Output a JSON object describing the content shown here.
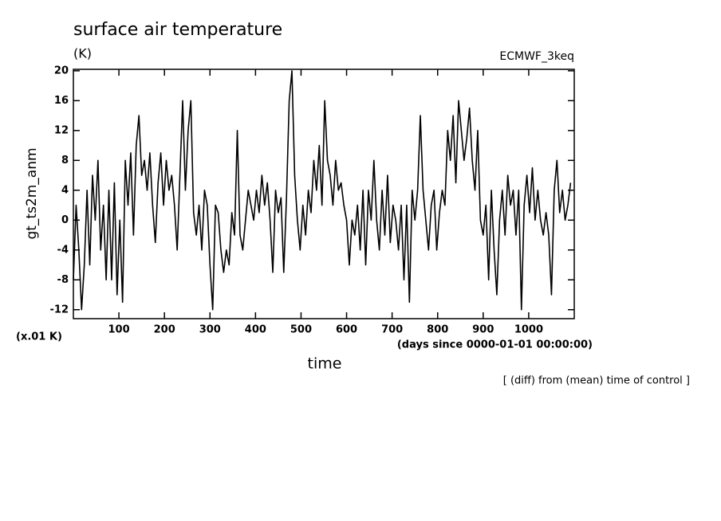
{
  "chart_data": {
    "type": "line",
    "title": "surface air temperature",
    "subtitle": "(K)",
    "annotation": "ECMWF_3keq",
    "ylabel": "gt_ts2m_anm",
    "yunit": "(x.01 K)",
    "xunit": "(days since 0000-01-01 00:00:00)",
    "xlabel": "time",
    "note": "[ (diff) from (mean) time of control ]",
    "color": "#000000",
    "xlim": [
      0,
      1100
    ],
    "ylim": [
      -13.2,
      20.2
    ],
    "xticks": [
      100,
      200,
      300,
      400,
      500,
      600,
      700,
      800,
      900,
      1000
    ],
    "yticks": [
      20,
      16,
      12,
      8,
      4,
      0,
      -4,
      -8,
      -12
    ],
    "x": [
      0,
      6,
      12,
      18,
      24,
      30,
      36,
      42,
      48,
      54,
      60,
      66,
      72,
      78,
      84,
      90,
      96,
      102,
      108,
      114,
      120,
      126,
      132,
      138,
      144,
      150,
      156,
      162,
      168,
      174,
      180,
      186,
      192,
      198,
      204,
      210,
      216,
      222,
      228,
      234,
      240,
      246,
      252,
      258,
      264,
      270,
      276,
      282,
      288,
      294,
      300,
      306,
      312,
      318,
      324,
      330,
      336,
      342,
      348,
      354,
      360,
      366,
      372,
      378,
      384,
      390,
      396,
      402,
      408,
      414,
      420,
      426,
      432,
      438,
      444,
      450,
      456,
      462,
      468,
      474,
      480,
      486,
      492,
      498,
      504,
      510,
      516,
      522,
      528,
      534,
      540,
      546,
      552,
      558,
      564,
      570,
      576,
      582,
      588,
      594,
      600,
      606,
      612,
      618,
      624,
      630,
      636,
      642,
      648,
      654,
      660,
      666,
      672,
      678,
      684,
      690,
      696,
      702,
      708,
      714,
      720,
      726,
      732,
      738,
      744,
      750,
      756,
      762,
      768,
      774,
      780,
      786,
      792,
      798,
      804,
      810,
      816,
      822,
      828,
      834,
      840,
      846,
      852,
      858,
      864,
      870,
      876,
      882,
      888,
      894,
      900,
      906,
      912,
      918,
      924,
      930,
      936,
      942,
      948,
      954,
      960,
      966,
      972,
      978,
      984,
      990,
      996,
      1002,
      1008,
      1014,
      1020,
      1026,
      1032,
      1038,
      1044,
      1050,
      1056,
      1062,
      1068,
      1074,
      1080,
      1086,
      1092
    ],
    "values": [
      -8,
      2,
      -4,
      -12,
      -6,
      4,
      -6,
      6,
      0,
      8,
      -4,
      2,
      -8,
      4,
      -8,
      5,
      -10,
      0,
      -11,
      8,
      2,
      9,
      -2,
      10,
      14,
      6,
      8,
      4,
      9,
      2,
      -3,
      5,
      9,
      2,
      8,
      4,
      6,
      2,
      -4,
      6,
      16,
      4,
      12,
      16,
      1,
      -2,
      2,
      -4,
      4,
      2,
      -6,
      -12,
      2,
      1,
      -4,
      -7,
      -4,
      -6,
      1,
      -2,
      12,
      -2,
      -4,
      0,
      4,
      2,
      0,
      4,
      1,
      6,
      2,
      5,
      0,
      -7,
      4,
      1,
      3,
      -7,
      3,
      16,
      20,
      6,
      0,
      -4,
      2,
      -2,
      4,
      1,
      8,
      4,
      10,
      2,
      16,
      8,
      6,
      2,
      8,
      4,
      5,
      2,
      0,
      -6,
      0,
      -2,
      2,
      -4,
      4,
      -6,
      4,
      0,
      8,
      0,
      -4,
      4,
      -2,
      6,
      -3,
      2,
      0,
      -4,
      2,
      -8,
      2,
      -11,
      4,
      0,
      4,
      14,
      4,
      0,
      -4,
      2,
      4,
      -4,
      1,
      4,
      2,
      12,
      8,
      14,
      5,
      16,
      12,
      8,
      11,
      15,
      8,
      4,
      12,
      0,
      -2,
      2,
      -8,
      4,
      -4,
      -10,
      0,
      4,
      -2,
      6,
      2,
      4,
      -2,
      4,
      -12,
      2,
      6,
      1,
      7,
      0,
      4,
      0,
      -2,
      1,
      -2,
      -10,
      4,
      8,
      1,
      4,
      0,
      2,
      5
    ]
  }
}
